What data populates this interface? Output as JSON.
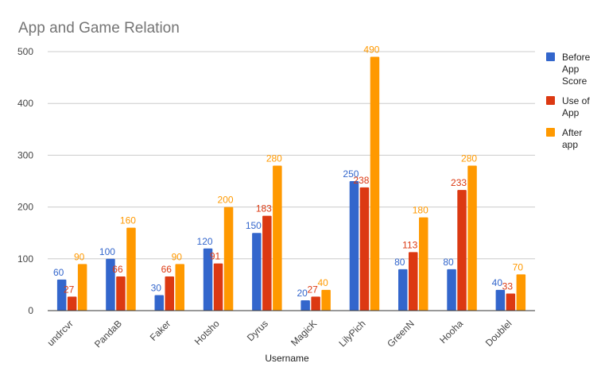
{
  "chart_data": {
    "type": "bar",
    "title": "App and Game Relation",
    "xlabel": "Username",
    "ylabel": "",
    "ylim": [
      0,
      500
    ],
    "yticks": [
      0,
      100,
      200,
      300,
      400,
      500
    ],
    "grid": true,
    "legend_position": "right",
    "categories": [
      "undrcvr",
      "PandaB",
      "Faker",
      "Hotsho",
      "Dyrus",
      "MagicK",
      "LilyPich",
      "GreenN",
      "Hooha",
      "Doublel"
    ],
    "series": [
      {
        "name": "Before App Score",
        "legend_lines": [
          "Before",
          "App",
          "Score"
        ],
        "color": "#3366cc",
        "values": [
          60,
          100,
          30,
          120,
          150,
          20,
          250,
          80,
          80,
          40
        ]
      },
      {
        "name": "Use of App",
        "legend_lines": [
          "Use of",
          "App"
        ],
        "color": "#dc3912",
        "values": [
          27,
          66,
          66,
          91,
          183,
          27,
          238,
          113,
          233,
          33
        ]
      },
      {
        "name": "After app",
        "legend_lines": [
          "After",
          "app"
        ],
        "color": "#ff9900",
        "values": [
          90,
          160,
          90,
          200,
          280,
          40,
          490,
          180,
          280,
          70
        ]
      }
    ]
  }
}
